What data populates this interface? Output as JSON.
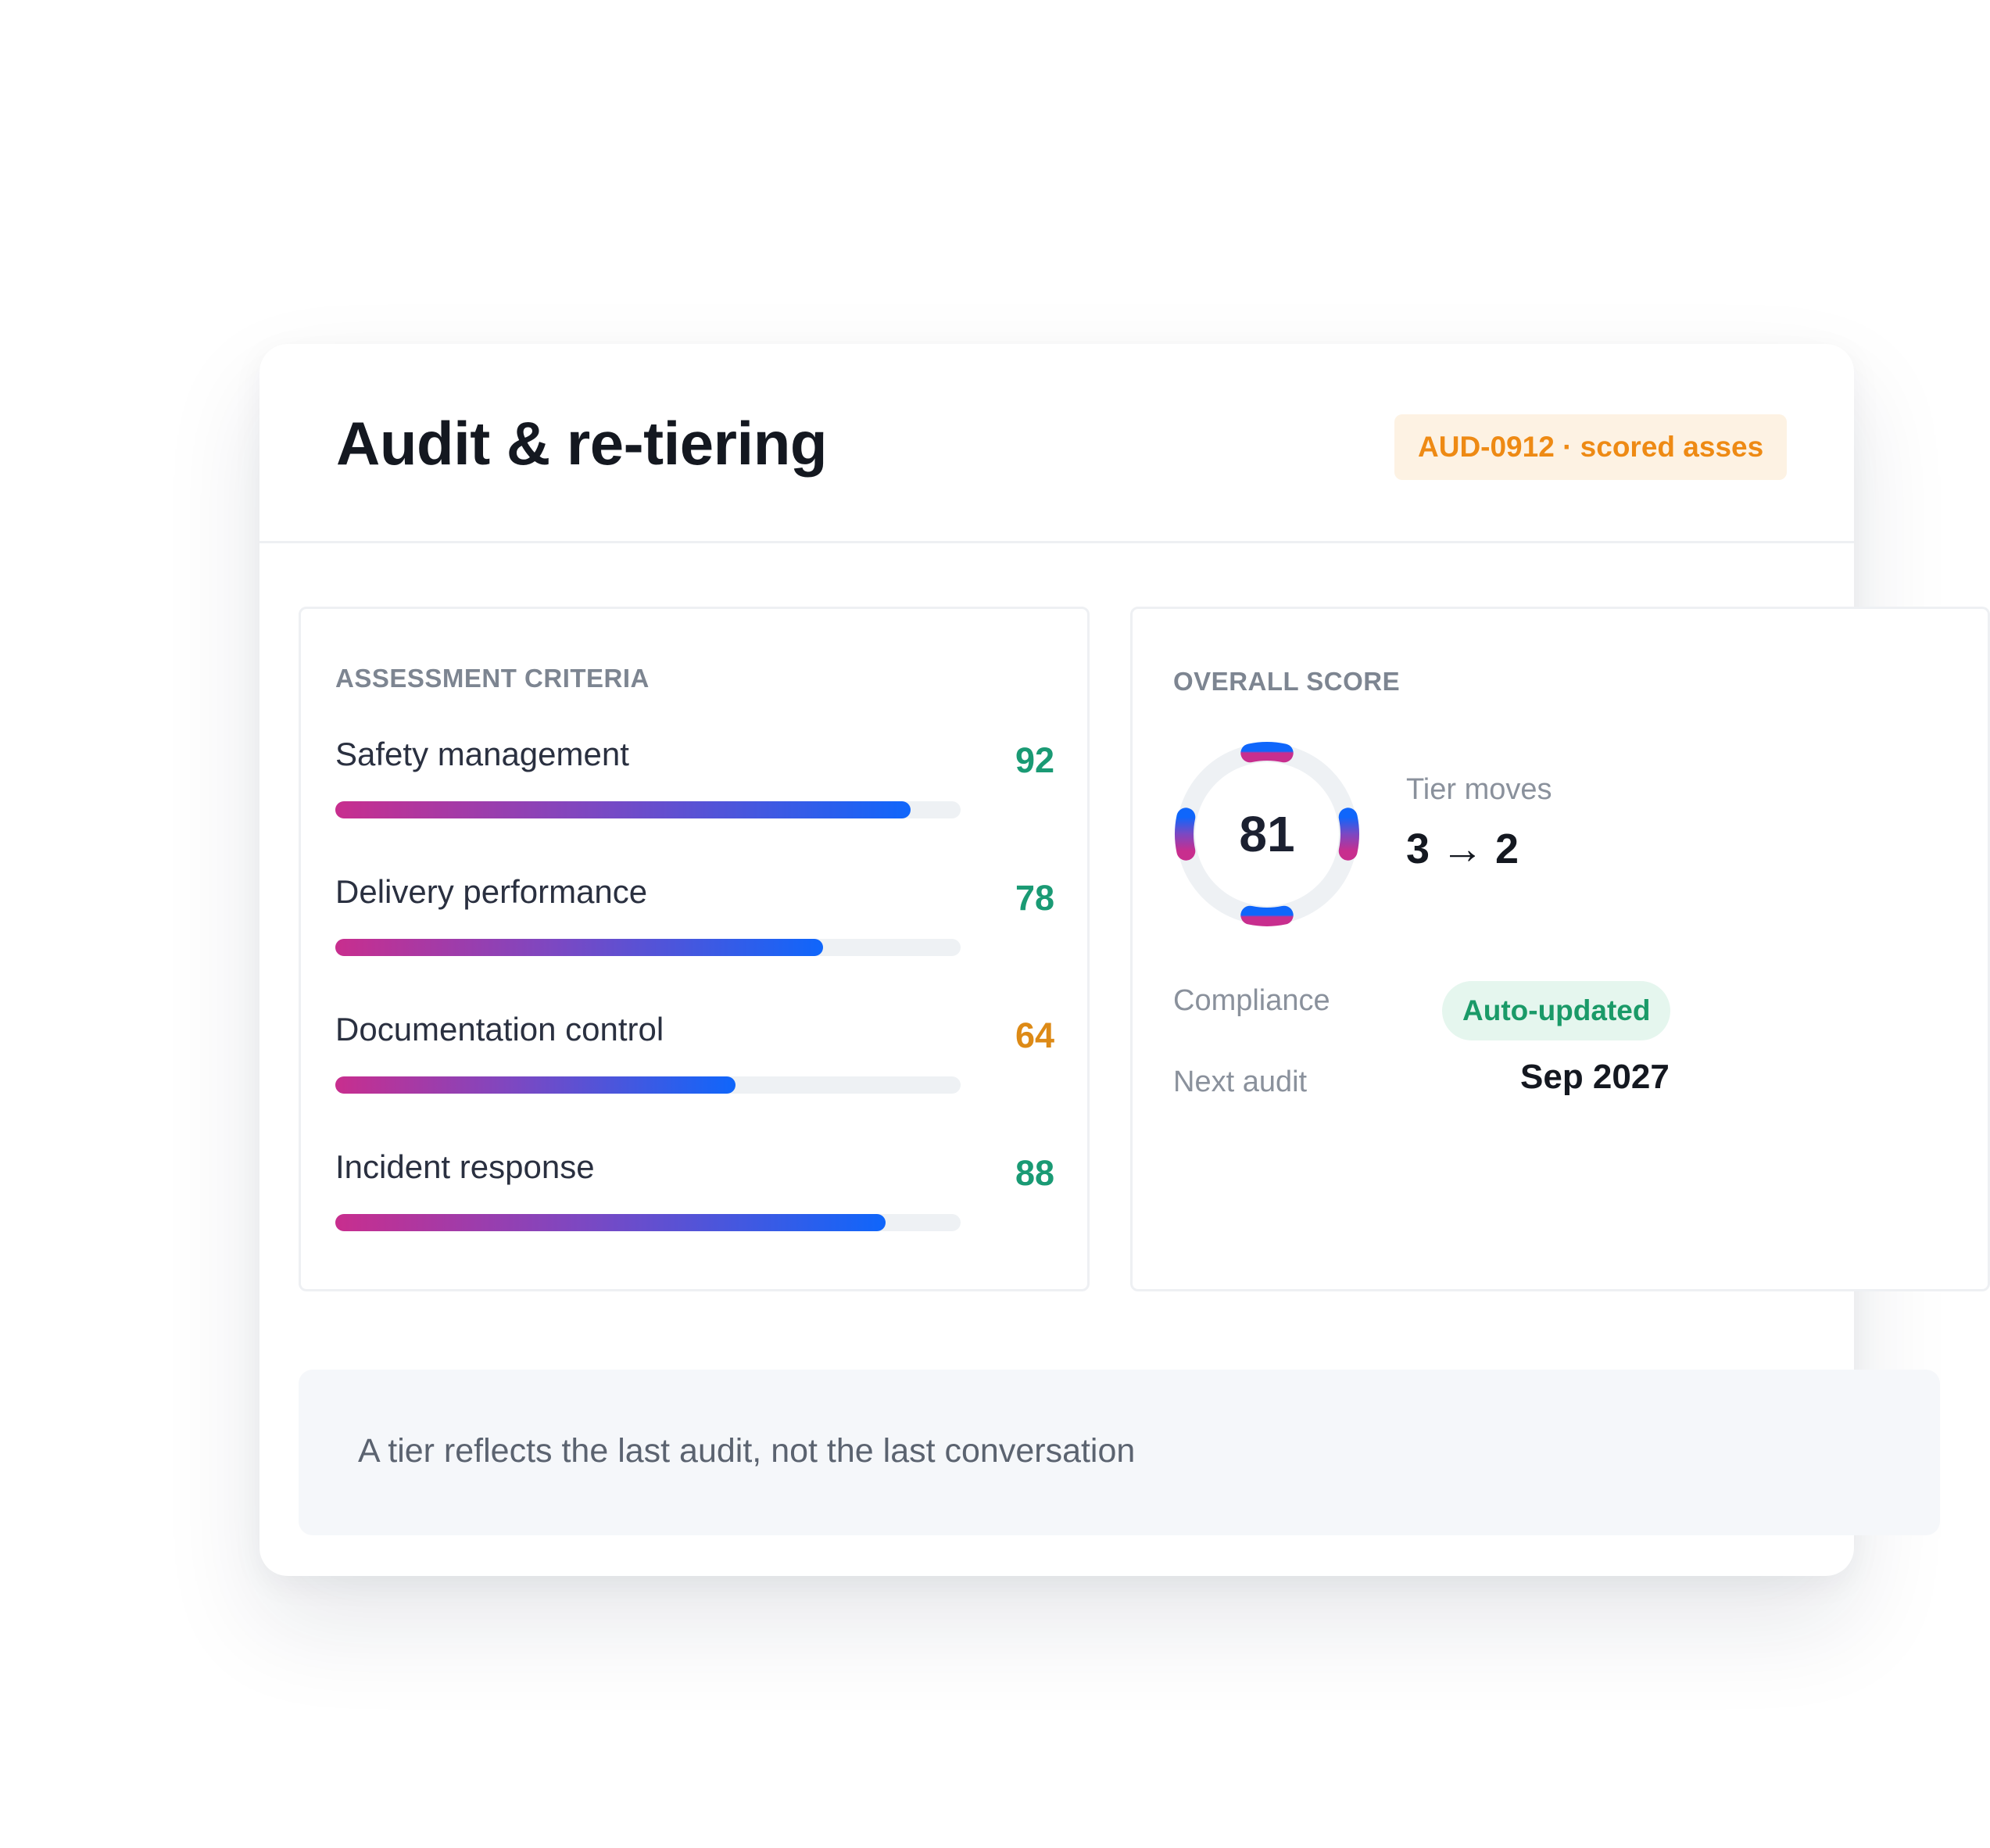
{
  "header": {
    "title": "Audit & re-tiering",
    "tag": "AUD-0912 · scored asses"
  },
  "criteria": {
    "label": "ASSESSMENT CRITERIA",
    "items": [
      {
        "name": "Safety management",
        "score": "92",
        "progress": 0.92,
        "score_color": "#1a9a74"
      },
      {
        "name": "Delivery performance",
        "score": "78",
        "progress": 0.78,
        "score_color": "#1a9a74"
      },
      {
        "name": "Documentation control",
        "score": "64",
        "progress": 0.64,
        "score_color": "#dd8a16"
      },
      {
        "name": "Incident response",
        "score": "88",
        "progress": 0.88,
        "score_color": "#1a9a74"
      }
    ]
  },
  "overall": {
    "label": "OVERALL SCORE",
    "score": "81",
    "tier_label": "Tier moves",
    "tier_value": "3 → 2",
    "compliance_label": "Compliance",
    "compliance_status": "Auto-updated",
    "next_audit_label": "Next audit",
    "next_audit_value": "Sep 2027"
  },
  "note": {
    "text": "A tier reflects the last audit, not the last conversation"
  },
  "colors": {
    "gradient_start": "#c82e8e",
    "gradient_mid": "#7c48c2",
    "gradient_end": "#0f66fb",
    "tag_text": "#ee8a14",
    "tag_bg": "#fdf2e3",
    "status_green": "#1a9a68"
  }
}
